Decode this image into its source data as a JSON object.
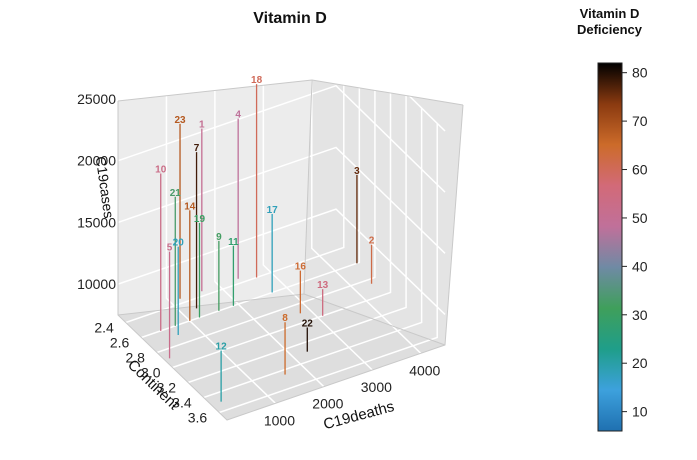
{
  "chart_data": {
    "type": "scatter3d",
    "title": "Vitamin D",
    "xlabel": "C19deaths",
    "ylabel": "Continent",
    "zlabel": "C19cases",
    "x_ticks": [
      "1000",
      "2000",
      "3000",
      "4000"
    ],
    "y_ticks": [
      "2.4",
      "2.6",
      "2.8",
      "3.0",
      "3.2",
      "3.4",
      "3.6"
    ],
    "z_ticks": [
      "10000",
      "15000",
      "20000",
      "25000"
    ],
    "xlim": [
      0,
      4500
    ],
    "ylim": [
      2.3,
      3.7
    ],
    "zlim": [
      7500,
      25000
    ],
    "colorbar": {
      "title_line1": "Vitamin D",
      "title_line2": "Deficiency",
      "range": [
        6,
        82
      ],
      "ticks": [
        "10",
        "20",
        "30",
        "40",
        "50",
        "60",
        "70",
        "80"
      ],
      "colors": [
        "#1f70b0",
        "#3da1dd",
        "#1f9e8a",
        "#3f9f5b",
        "#6f8aa4",
        "#c0709a",
        "#d26a78",
        "#cc6b2a",
        "#8a3a10",
        "#000000"
      ]
    },
    "points": [
      {
        "label": "1",
        "x": 1650,
        "y": 2.35,
        "z": 21000,
        "vitd": 50
      },
      {
        "label": "2",
        "x": 4350,
        "y": 2.85,
        "z": 11000,
        "vitd": 62
      },
      {
        "label": "3",
        "x": 4450,
        "y": 2.6,
        "z": 15000,
        "vitd": 76
      },
      {
        "label": "4",
        "x": 2400,
        "y": 2.35,
        "z": 20800,
        "vitd": 48
      },
      {
        "label": "5",
        "x": 100,
        "y": 2.9,
        "z": 16500,
        "vitd": 52
      },
      {
        "label": "7",
        "x": 1300,
        "y": 2.5,
        "z": 20500,
        "vitd": 78
      },
      {
        "label": "8",
        "x": 1600,
        "y": 3.45,
        "z": 12100,
        "vitd": 65
      },
      {
        "label": "9",
        "x": 1600,
        "y": 2.6,
        "z": 13500,
        "vitd": 32
      },
      {
        "label": "10",
        "x": 400,
        "y": 2.6,
        "z": 20600,
        "vitd": 53
      },
      {
        "label": "11",
        "x": 1900,
        "y": 2.6,
        "z": 12700,
        "vitd": 28
      },
      {
        "label": "12",
        "x": 200,
        "y": 3.5,
        "z": 12000,
        "vitd": 20
      },
      {
        "label": "13",
        "x": 3100,
        "y": 3.0,
        "z": 10000,
        "vitd": 55
      },
      {
        "label": "14",
        "x": 1000,
        "y": 2.6,
        "z": 16800,
        "vitd": 68
      },
      {
        "label": "17",
        "x": 2700,
        "y": 2.6,
        "z": 14200,
        "vitd": 18
      },
      {
        "label": "18",
        "x": 2700,
        "y": 2.4,
        "z": 23500,
        "vitd": 60
      },
      {
        "label": "19",
        "x": 1200,
        "y": 2.6,
        "z": 15500,
        "vitd": 30
      },
      {
        "label": "20",
        "x": 600,
        "y": 2.7,
        "z": 15000,
        "vitd": 18
      },
      {
        "label": "21",
        "x": 700,
        "y": 2.6,
        "z": 18300,
        "vitd": 33
      },
      {
        "label": "22",
        "x": 2300,
        "y": 3.3,
        "z": 9800,
        "vitd": 80
      },
      {
        "label": "23",
        "x": 1200,
        "y": 2.35,
        "z": 22000,
        "vitd": 68
      },
      {
        "label": "16",
        "x": 2800,
        "y": 2.9,
        "z": 11300,
        "vitd": 64
      }
    ]
  }
}
